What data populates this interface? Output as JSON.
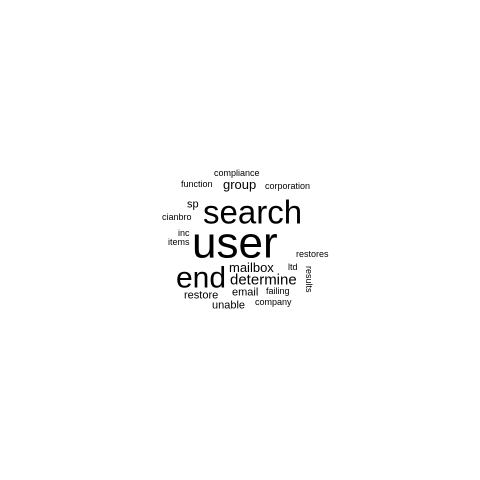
{
  "word_cloud": {
    "words": [
      {
        "text": "user"
      },
      {
        "text": "search"
      },
      {
        "text": "end"
      },
      {
        "text": "determine"
      },
      {
        "text": "mailbox"
      },
      {
        "text": "group"
      },
      {
        "text": "email"
      },
      {
        "text": "restore"
      },
      {
        "text": "unable"
      },
      {
        "text": "sp"
      },
      {
        "text": "failing"
      },
      {
        "text": "compliance"
      },
      {
        "text": "function"
      },
      {
        "text": "corporation"
      },
      {
        "text": "cianbro"
      },
      {
        "text": "inc"
      },
      {
        "text": "items"
      },
      {
        "text": "restores"
      },
      {
        "text": "ltd"
      },
      {
        "text": "results"
      },
      {
        "text": "company"
      }
    ],
    "text_color": "#000000",
    "background_color": "#ffffff"
  }
}
